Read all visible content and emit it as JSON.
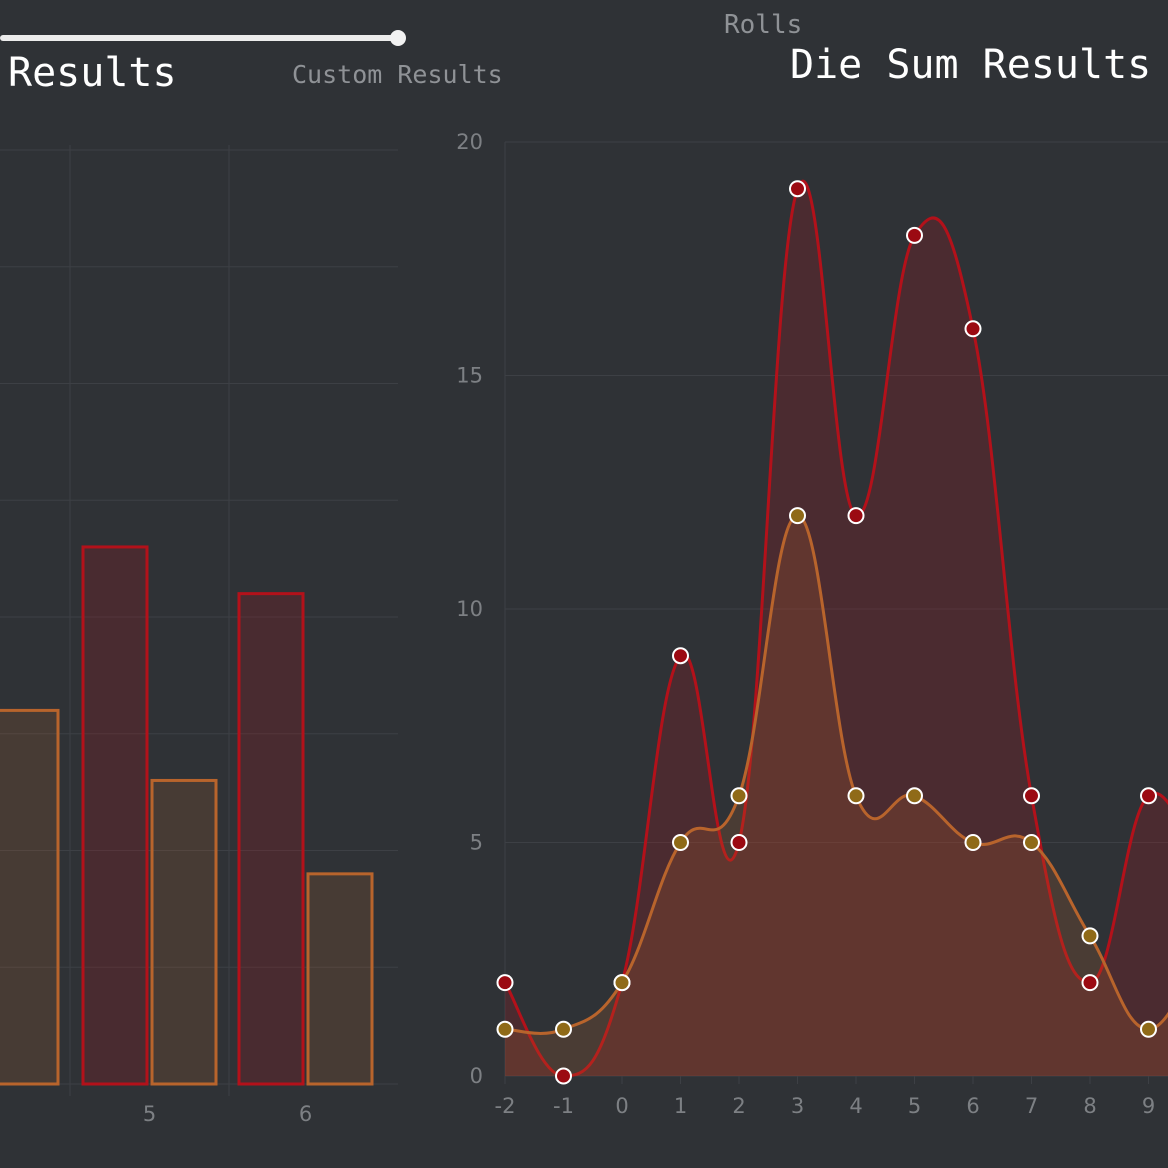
{
  "header": {
    "rolls_label": "Rolls",
    "left_title": "Results",
    "custom_label": "Custom Results",
    "right_title": "Die Sum Results"
  },
  "slider": {
    "value": 1.0
  },
  "colors": {
    "background": "#2f3236",
    "red": "#b3111a",
    "orange": "#b8642c",
    "red_point": "#9b0a12",
    "orange_point": "#8f6a18",
    "grid": "#3d4045"
  },
  "chart_data": [
    {
      "type": "bar",
      "title": "Results",
      "categories": [
        "5",
        "6"
      ],
      "series": [
        {
          "values": [
            11.5,
            10.5
          ]
        },
        {
          "values": [
            6.5,
            4.5
          ]
        }
      ],
      "partial_bar_left_of_5": 8.0,
      "ylim": [
        0,
        20
      ],
      "grid": true
    },
    {
      "type": "area",
      "title": "Die Sum Results",
      "x": [
        -2,
        -1,
        0,
        1,
        2,
        3,
        4,
        5,
        6,
        7,
        8,
        9
      ],
      "x_tick_labels": [
        "-2",
        "-1",
        "0",
        "1",
        "2",
        "3",
        "4",
        "5",
        "6",
        "7",
        "8",
        "9"
      ],
      "y_tick_labels": [
        "0",
        "5",
        "10",
        "15",
        "20"
      ],
      "series": [
        {
          "values": [
            2,
            0,
            2,
            9,
            5,
            19,
            12,
            18,
            16,
            6,
            2,
            6
          ]
        },
        {
          "values": [
            1,
            1,
            2,
            5,
            6,
            12,
            6,
            6,
            5,
            5,
            3,
            1
          ]
        }
      ],
      "ylim": [
        0,
        20
      ],
      "grid": true,
      "smooth": true
    }
  ]
}
